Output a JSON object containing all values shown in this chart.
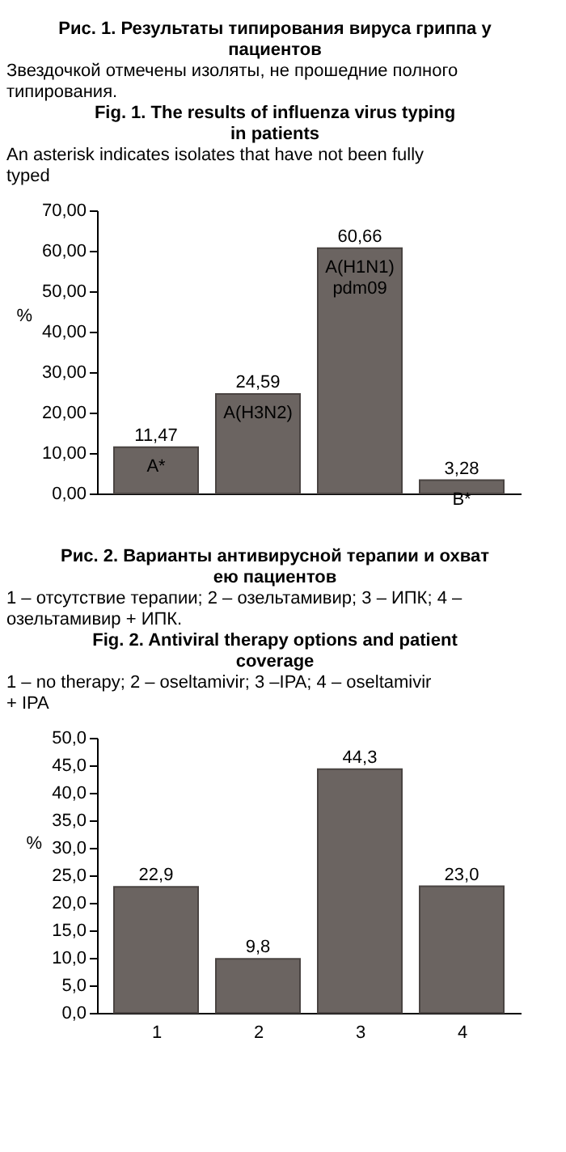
{
  "chart_data": [
    {
      "type": "bar",
      "title": "Рис. 1. Результаты типирования вируса гриппа у пациентов",
      "subtitle": "Звездочкой отмечены изоляты, не прошедние полного типирования.",
      "annotations": [
        "Fig. 1. The results of influenza virus typing in patients",
        "An asterisk indicates isolates that have not been fully typed"
      ],
      "ylabel": "%",
      "categories": [
        "A*",
        "A(H3N2)",
        "A(H1N1) pdm09",
        "B*"
      ],
      "values": [
        11.47,
        24.59,
        60.66,
        3.28
      ],
      "value_labels": [
        "11,47",
        "24,59",
        "60,66",
        "3,28"
      ],
      "color": "#6b6461",
      "ylim": [
        0,
        70
      ],
      "yticks": [
        {
          "value": 0,
          "label": "0,00"
        },
        {
          "value": 10,
          "label": "10,00"
        },
        {
          "value": 20,
          "label": "20,00"
        },
        {
          "value": 30,
          "label": "30,00"
        },
        {
          "value": 40,
          "label": "40,00"
        },
        {
          "value": 50,
          "label": "50,00"
        },
        {
          "value": 60,
          "label": "60,00"
        },
        {
          "value": 70,
          "label": "70,00"
        }
      ],
      "grid": false,
      "legend": false,
      "tick_labels": "y"
    },
    {
      "type": "bar",
      "title": "Рис. 2. Варианты антивирусной терапии и охват ею пациентов",
      "subtitle": "1 – отсутствие терапии; 2 – озельтамивир; 3 – ИПК; 4 – озельтамивир + ИПК.",
      "annotations": [
        "Fig. 2. Antiviral therapy options and patient coverage",
        "1 – no therapy; 2 – oseltamivir; 3 –IPA; 4 – oseltamivir + IPA"
      ],
      "ylabel": "%",
      "categories": [
        "1",
        "2",
        "3",
        "4"
      ],
      "values": [
        22.9,
        9.8,
        44.3,
        23.0
      ],
      "value_labels": [
        "22,9",
        "9,8",
        "44,3",
        "23,0"
      ],
      "color": "#6b6461",
      "ylim": [
        0,
        50
      ],
      "yticks": [
        {
          "value": 0,
          "label": "0,0"
        },
        {
          "value": 5,
          "label": "5,0"
        },
        {
          "value": 10,
          "label": "10,0"
        },
        {
          "value": 15,
          "label": "15,0"
        },
        {
          "value": 20,
          "label": "20,0"
        },
        {
          "value": 25,
          "label": "25,0"
        },
        {
          "value": 30,
          "label": "30,0"
        },
        {
          "value": 35,
          "label": "35,0"
        },
        {
          "value": 40,
          "label": "40,0"
        },
        {
          "value": 45,
          "label": "45,0"
        },
        {
          "value": 50,
          "label": "50,0"
        }
      ],
      "grid": false,
      "legend": false
    }
  ]
}
